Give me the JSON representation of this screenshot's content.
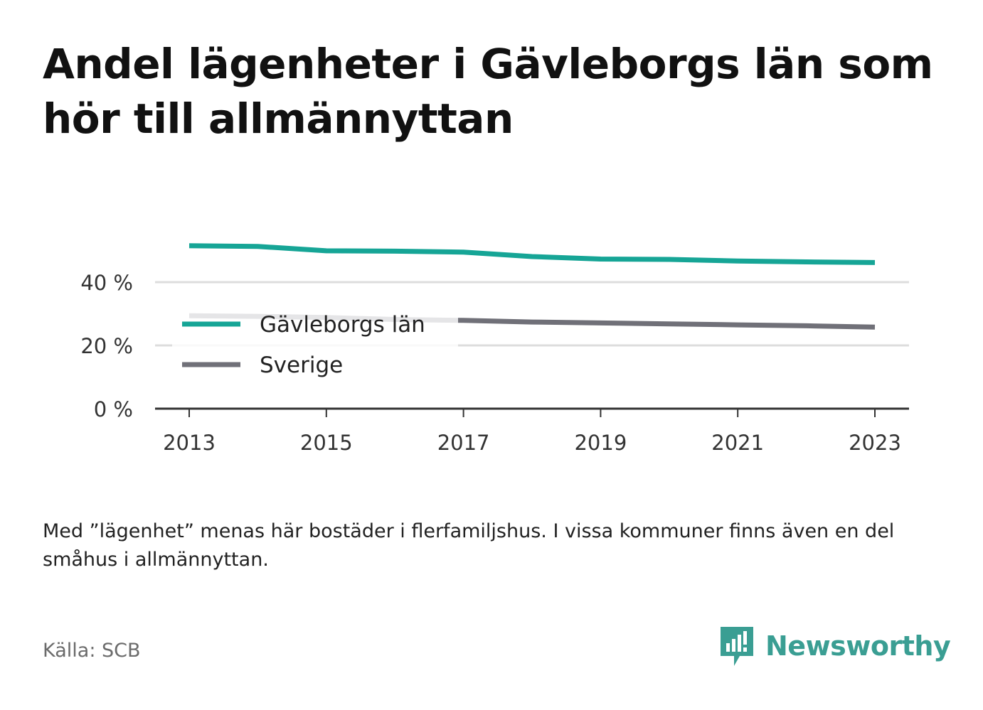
{
  "title": "Andel lägenheter i Gävleborgs län som hör till allmännyttan",
  "note": "Med ”lägenhet” menas här bostäder i flerfamiljshus. I vissa kommuner finns även en del småhus i allmännyttan.",
  "source": "Källa: SCB",
  "brand": {
    "name": "Newsworthy",
    "color": "#3a9e93"
  },
  "chart_data": {
    "type": "line",
    "title": "Andel lägenheter i Gävleborgs län som hör till allmännyttan",
    "x": [
      2013,
      2014,
      2015,
      2016,
      2017,
      2018,
      2019,
      2020,
      2021,
      2022,
      2023
    ],
    "x_ticks": [
      "2013",
      "2015",
      "2017",
      "2019",
      "2021",
      "2023"
    ],
    "y_ticks": [
      {
        "value": 0,
        "label": "0 %"
      },
      {
        "value": 20,
        "label": "20 %"
      },
      {
        "value": 40,
        "label": "40 %"
      }
    ],
    "ylim": [
      0,
      56
    ],
    "grid": true,
    "legend_position": "center-left",
    "series": [
      {
        "name": "Gävleborgs län",
        "color": "#16a596",
        "values": [
          51.5,
          51.3,
          49.9,
          49.8,
          49.5,
          48.1,
          47.3,
          47.2,
          46.7,
          46.4,
          46.2
        ]
      },
      {
        "name": "Sverige",
        "color": "#707078",
        "values": [
          29.4,
          29.2,
          28.8,
          28.2,
          27.9,
          27.4,
          27.1,
          26.8,
          26.5,
          26.2,
          25.8
        ]
      }
    ]
  }
}
